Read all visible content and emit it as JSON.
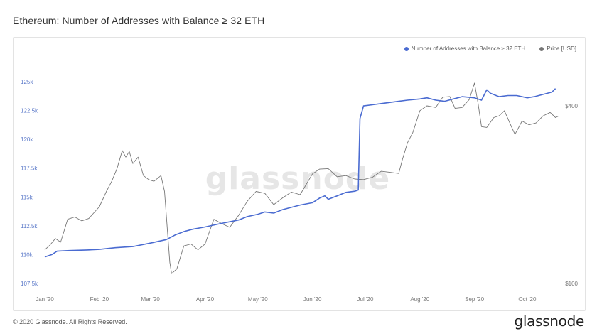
{
  "title": "Ethereum: Number of Addresses with Balance ≥ 32 ETH",
  "footer": "© 2020 Glassnode. All Rights Reserved.",
  "brand": "glassnode",
  "watermark": "glassnode",
  "colors": {
    "addresses": "#4a6bd1",
    "price": "#777777",
    "tick_left": "#5b79c9"
  },
  "chart_data": {
    "type": "line",
    "legend_position": "top-right",
    "grid": false,
    "x_range": [
      "2020-01-01",
      "2020-10-20"
    ],
    "x_ticks": [
      {
        "date": "2020-01-01",
        "label": "Jan '20"
      },
      {
        "date": "2020-02-01",
        "label": "Feb '20"
      },
      {
        "date": "2020-03-01",
        "label": "Mar '20"
      },
      {
        "date": "2020-04-01",
        "label": "Apr '20"
      },
      {
        "date": "2020-05-01",
        "label": "May '20"
      },
      {
        "date": "2020-06-01",
        "label": "Jun '20"
      },
      {
        "date": "2020-07-01",
        "label": "Jul '20"
      },
      {
        "date": "2020-08-01",
        "label": "Aug '20"
      },
      {
        "date": "2020-09-01",
        "label": "Sep '20"
      },
      {
        "date": "2020-10-01",
        "label": "Oct '20"
      }
    ],
    "y_left": {
      "range": [
        107500,
        125000
      ],
      "ticks": [
        {
          "value": 107500,
          "label": "107.5k"
        },
        {
          "value": 110000,
          "label": "110k"
        },
        {
          "value": 112500,
          "label": "112.5k"
        },
        {
          "value": 115000,
          "label": "115k"
        },
        {
          "value": 117500,
          "label": "117.5k"
        },
        {
          "value": 120000,
          "label": "120k"
        },
        {
          "value": 122500,
          "label": "122.5k"
        },
        {
          "value": 125000,
          "label": "125k"
        }
      ]
    },
    "y_right": {
      "scale": "log",
      "range": [
        100,
        400
      ],
      "ticks": [
        {
          "value": 100,
          "label": "$100"
        },
        {
          "value": 400,
          "label": "$400"
        }
      ]
    },
    "series": [
      {
        "name": "Number of Addresses with Balance ≥ 32 ETH",
        "axis": "left",
        "points": [
          [
            "2020-01-01",
            109800
          ],
          [
            "2020-01-05",
            110000
          ],
          [
            "2020-01-08",
            110300
          ],
          [
            "2020-01-15",
            110350
          ],
          [
            "2020-01-25",
            110400
          ],
          [
            "2020-02-01",
            110450
          ],
          [
            "2020-02-10",
            110600
          ],
          [
            "2020-02-20",
            110700
          ],
          [
            "2020-03-01",
            111000
          ],
          [
            "2020-03-10",
            111300
          ],
          [
            "2020-03-15",
            111700
          ],
          [
            "2020-03-20",
            112000
          ],
          [
            "2020-03-25",
            112200
          ],
          [
            "2020-04-01",
            112400
          ],
          [
            "2020-04-10",
            112700
          ],
          [
            "2020-04-20",
            113000
          ],
          [
            "2020-04-25",
            113300
          ],
          [
            "2020-05-01",
            113500
          ],
          [
            "2020-05-05",
            113700
          ],
          [
            "2020-05-10",
            113600
          ],
          [
            "2020-05-15",
            113900
          ],
          [
            "2020-05-20",
            114100
          ],
          [
            "2020-05-25",
            114300
          ],
          [
            "2020-06-01",
            114500
          ],
          [
            "2020-06-05",
            114900
          ],
          [
            "2020-06-08",
            115100
          ],
          [
            "2020-06-10",
            114800
          ],
          [
            "2020-06-15",
            115100
          ],
          [
            "2020-06-20",
            115400
          ],
          [
            "2020-06-25",
            115500
          ],
          [
            "2020-06-27",
            115600
          ],
          [
            "2020-06-28",
            121800
          ],
          [
            "2020-06-30",
            122900
          ],
          [
            "2020-07-05",
            123000
          ],
          [
            "2020-07-10",
            123100
          ],
          [
            "2020-07-15",
            123200
          ],
          [
            "2020-07-20",
            123300
          ],
          [
            "2020-07-25",
            123400
          ],
          [
            "2020-08-01",
            123500
          ],
          [
            "2020-08-05",
            123600
          ],
          [
            "2020-08-10",
            123400
          ],
          [
            "2020-08-15",
            123300
          ],
          [
            "2020-08-20",
            123500
          ],
          [
            "2020-08-25",
            123700
          ],
          [
            "2020-09-01",
            123600
          ],
          [
            "2020-09-05",
            123400
          ],
          [
            "2020-09-08",
            124300
          ],
          [
            "2020-09-10",
            124000
          ],
          [
            "2020-09-15",
            123700
          ],
          [
            "2020-09-20",
            123800
          ],
          [
            "2020-09-25",
            123800
          ],
          [
            "2020-10-01",
            123600
          ],
          [
            "2020-10-05",
            123700
          ],
          [
            "2020-10-10",
            123900
          ],
          [
            "2020-10-15",
            124100
          ],
          [
            "2020-10-17",
            124400
          ]
        ]
      },
      {
        "name": "Price [USD]",
        "axis": "right",
        "points": [
          [
            "2020-01-01",
            130
          ],
          [
            "2020-01-04",
            135
          ],
          [
            "2020-01-07",
            142
          ],
          [
            "2020-01-10",
            138
          ],
          [
            "2020-01-14",
            165
          ],
          [
            "2020-01-18",
            168
          ],
          [
            "2020-01-22",
            163
          ],
          [
            "2020-01-26",
            166
          ],
          [
            "2020-02-01",
            182
          ],
          [
            "2020-02-05",
            205
          ],
          [
            "2020-02-08",
            222
          ],
          [
            "2020-02-11",
            245
          ],
          [
            "2020-02-14",
            282
          ],
          [
            "2020-02-16",
            268
          ],
          [
            "2020-02-18",
            280
          ],
          [
            "2020-02-20",
            255
          ],
          [
            "2020-02-23",
            268
          ],
          [
            "2020-02-26",
            232
          ],
          [
            "2020-02-29",
            225
          ],
          [
            "2020-03-03",
            222
          ],
          [
            "2020-03-07",
            232
          ],
          [
            "2020-03-09",
            205
          ],
          [
            "2020-03-12",
            118
          ],
          [
            "2020-03-13",
            108
          ],
          [
            "2020-03-16",
            112
          ],
          [
            "2020-03-20",
            134
          ],
          [
            "2020-03-24",
            136
          ],
          [
            "2020-03-28",
            130
          ],
          [
            "2020-04-01",
            136
          ],
          [
            "2020-04-06",
            165
          ],
          [
            "2020-04-10",
            160
          ],
          [
            "2020-04-15",
            155
          ],
          [
            "2020-04-20",
            170
          ],
          [
            "2020-04-25",
            190
          ],
          [
            "2020-04-30",
            205
          ],
          [
            "2020-05-05",
            202
          ],
          [
            "2020-05-10",
            185
          ],
          [
            "2020-05-15",
            195
          ],
          [
            "2020-05-20",
            204
          ],
          [
            "2020-05-25",
            200
          ],
          [
            "2020-06-01",
            235
          ],
          [
            "2020-06-05",
            244
          ],
          [
            "2020-06-10",
            245
          ],
          [
            "2020-06-15",
            230
          ],
          [
            "2020-06-20",
            232
          ],
          [
            "2020-06-25",
            226
          ],
          [
            "2020-06-30",
            225
          ],
          [
            "2020-07-05",
            229
          ],
          [
            "2020-07-10",
            240
          ],
          [
            "2020-07-15",
            238
          ],
          [
            "2020-07-20",
            236
          ],
          [
            "2020-07-22",
            262
          ],
          [
            "2020-07-25",
            300
          ],
          [
            "2020-07-28",
            325
          ],
          [
            "2020-08-01",
            385
          ],
          [
            "2020-08-05",
            400
          ],
          [
            "2020-08-10",
            395
          ],
          [
            "2020-08-14",
            428
          ],
          [
            "2020-08-18",
            430
          ],
          [
            "2020-08-21",
            392
          ],
          [
            "2020-08-25",
            395
          ],
          [
            "2020-08-29",
            420
          ],
          [
            "2020-09-01",
            478
          ],
          [
            "2020-09-03",
            410
          ],
          [
            "2020-09-05",
            340
          ],
          [
            "2020-09-08",
            338
          ],
          [
            "2020-09-12",
            365
          ],
          [
            "2020-09-15",
            370
          ],
          [
            "2020-09-18",
            385
          ],
          [
            "2020-09-22",
            340
          ],
          [
            "2020-09-24",
            320
          ],
          [
            "2020-09-28",
            355
          ],
          [
            "2020-10-02",
            345
          ],
          [
            "2020-10-06",
            350
          ],
          [
            "2020-10-10",
            370
          ],
          [
            "2020-10-14",
            380
          ],
          [
            "2020-10-17",
            365
          ],
          [
            "2020-10-19",
            370
          ]
        ]
      }
    ]
  }
}
